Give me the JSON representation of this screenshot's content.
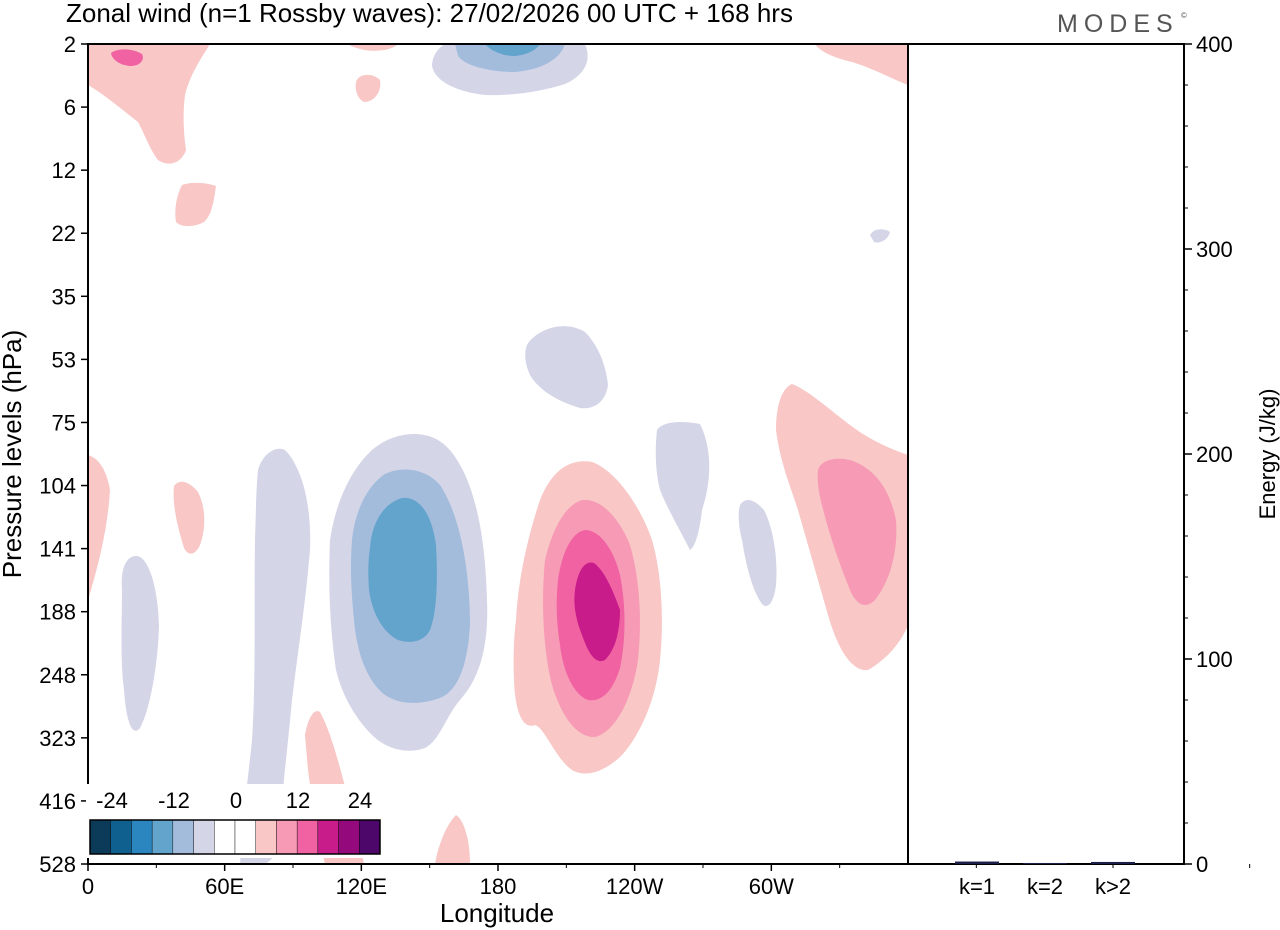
{
  "chart_data": {
    "type": "contour-with-bars",
    "title": "Zonal wind (n=1 Rossby waves):  27/02/2026  00 UTC  + 168 hrs",
    "logo": "MODES",
    "logo_mark": "©",
    "xlabel": "Longitude",
    "ylabel": "Pressure levels (hPa)",
    "x_ticks": [
      "0",
      "60E",
      "120E",
      "180",
      "120W",
      "60W"
    ],
    "y_ticks": [
      "2",
      "6",
      "12",
      "22",
      "35",
      "53",
      "75",
      "104",
      "141",
      "188",
      "248",
      "323",
      "416",
      "528"
    ],
    "right_axis": {
      "label": "Energy (J/kg)",
      "ticks": [
        "400",
        "300",
        "200",
        "100",
        "0"
      ],
      "ylim": [
        0,
        400
      ]
    },
    "bars": {
      "categories": [
        "k=1",
        "k=2",
        "k>2"
      ],
      "values": [
        1.2,
        0.5,
        1.0
      ],
      "color": "#1b1f4a"
    },
    "colorbar": {
      "tick_labels": [
        "-24",
        "-12",
        "0",
        "12",
        "24"
      ],
      "colors": [
        "#0c3b5a",
        "#0f5f8f",
        "#2b86c0",
        "#63a4cd",
        "#a3bcdc",
        "#d4d6e8",
        "#ffffff",
        "#ffffff",
        "#f8c7c6",
        "#f79ab5",
        "#f062a2",
        "#c81c8a",
        "#94097c",
        "#4d0669"
      ]
    }
  }
}
